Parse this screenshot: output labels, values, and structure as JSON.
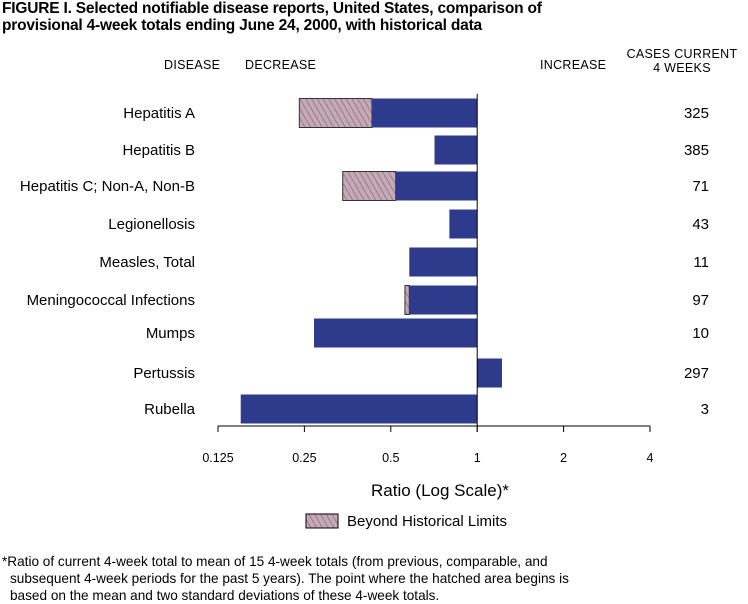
{
  "header": {
    "title_line1": "FIGURE I.  Selected notifiable disease reports, United States, comparison of",
    "title_line2": "provisional 4-week totals ending June 24, 2000, with historical data",
    "col_disease": "DISEASE",
    "col_decrease": "DECREASE",
    "col_increase": "INCREASE",
    "col_cases_line1": "CASES CURRENT",
    "col_cases_line2": "4 WEEKS"
  },
  "legend": {
    "label": "Beyond Historical Limits"
  },
  "footnote": {
    "line1": "*Ratio of current 4-week total to mean of 15 4-week totals (from previous, comparable, and",
    "line2": "subsequent 4-week periods for the past 5 years). The point where the hatched area begins is",
    "line3": "based on the mean and two standard deviations of these 4-week totals."
  },
  "colors": {
    "bar": "#2e3a8c",
    "hatch_fill": "#c8a8b8",
    "hatch_line": "#6e6e6e"
  },
  "chart_data": {
    "type": "bar",
    "orientation": "horizontal",
    "xscale": "log2",
    "xlabel": "Ratio (Log Scale)*",
    "xticks": [
      0.125,
      0.25,
      0.5,
      1,
      2,
      4
    ],
    "xtick_labels": [
      "0.125",
      "0.25",
      "0.5",
      "1",
      "2",
      "4"
    ],
    "xlim": [
      0.125,
      4
    ],
    "baseline": 1,
    "categories": [
      "Hepatitis A",
      "Hepatitis B",
      "Hepatitis C; Non-A, Non-B",
      "Legionellosis",
      "Measles, Total",
      "Meningococcal Infections",
      "Mumps",
      "Pertussis",
      "Rubella"
    ],
    "values": [
      0.24,
      0.71,
      0.34,
      0.8,
      0.58,
      0.56,
      0.27,
      1.22,
      0.15
    ],
    "beyond_historical_limit_at": [
      0.43,
      null,
      0.52,
      null,
      null,
      0.58,
      null,
      null,
      null
    ],
    "cases_current_4_weeks": [
      "325",
      "385",
      "71",
      "43",
      "11",
      "97",
      "10",
      "297",
      "3"
    ]
  }
}
